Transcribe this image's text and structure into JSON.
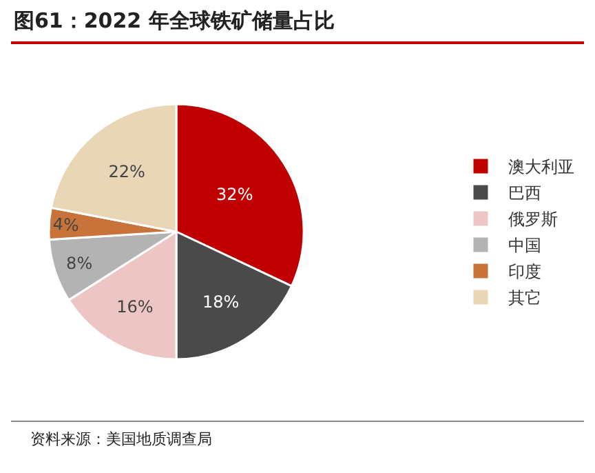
{
  "chart_data": {
    "type": "pie",
    "title": "图61：2022 年全球铁矿储量占比",
    "categories": [
      "澳大利亚",
      "巴西",
      "俄罗斯",
      "中国",
      "印度",
      "其它"
    ],
    "values": [
      32,
      18,
      16,
      8,
      4,
      22
    ],
    "value_labels": [
      "32%",
      "18%",
      "16%",
      "8%",
      "4%",
      "22%"
    ],
    "colors": [
      "#c00000",
      "#4a4a4a",
      "#eec5c5",
      "#b3b3b3",
      "#c8733a",
      "#e8d6b6"
    ],
    "legend": "right",
    "annotations": [
      "资料来源：美国地质调查局"
    ]
  }
}
